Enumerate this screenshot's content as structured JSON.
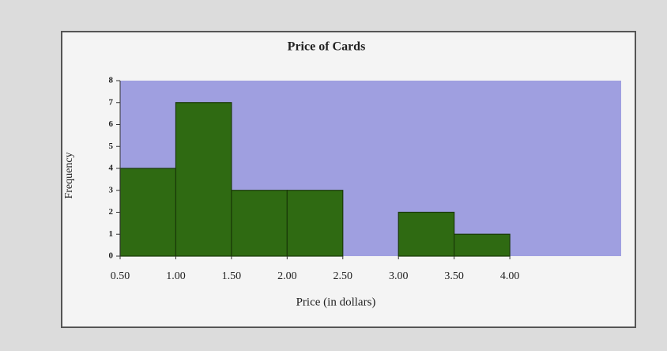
{
  "chart_data": {
    "type": "histogram",
    "title": "Price of Cards",
    "x_label": "Price (in dollars)",
    "y_label": "Frequency",
    "bins": [
      0.5,
      1.0,
      1.5,
      2.0,
      2.5,
      3.0,
      3.5,
      4.0
    ],
    "values": [
      4,
      7,
      3,
      3,
      0,
      2,
      1
    ],
    "color": "#2f6a12",
    "plot_background": "#9f9fe0",
    "xlim": [
      0.5,
      5.0
    ],
    "xticks": [
      {
        "value": 0.5,
        "label": "0.50"
      },
      {
        "value": 1.0,
        "label": "1.00"
      },
      {
        "value": 1.5,
        "label": "1.50"
      },
      {
        "value": 2.0,
        "label": "2.00"
      },
      {
        "value": 2.5,
        "label": "2.50"
      },
      {
        "value": 3.0,
        "label": "3.00"
      },
      {
        "value": 3.5,
        "label": "3.50"
      },
      {
        "value": 4.0,
        "label": "4.00"
      }
    ],
    "ylim": [
      0,
      8
    ],
    "yticks": [
      0,
      1,
      2,
      3,
      4,
      5,
      6,
      7,
      8
    ]
  }
}
